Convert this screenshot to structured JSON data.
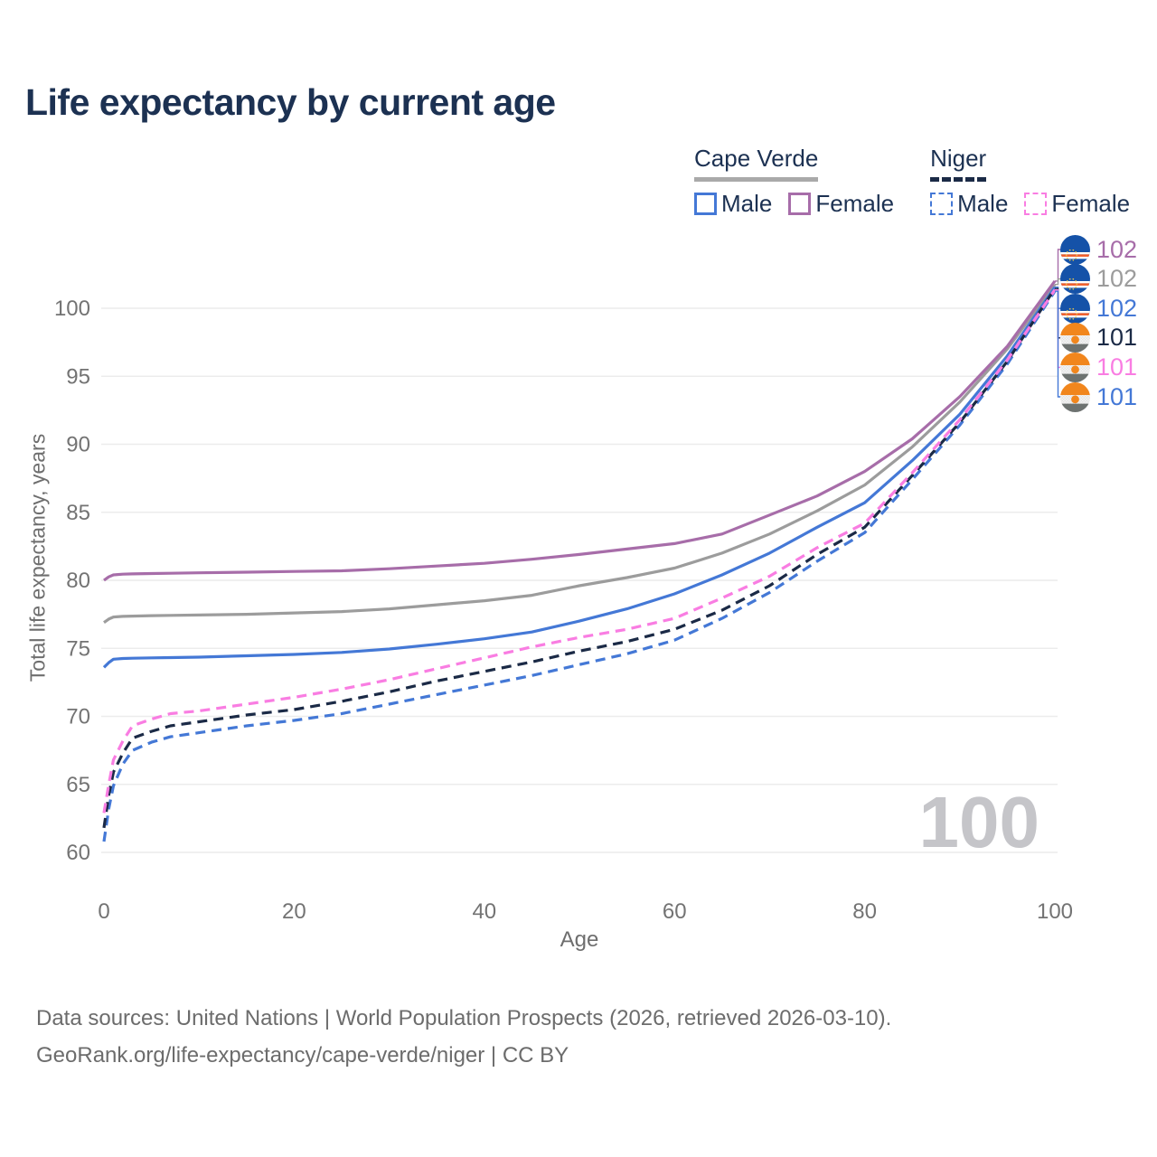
{
  "title": "Life expectancy by current age",
  "legend": {
    "groups": [
      {
        "label": "Cape Verde",
        "line_style": "solid",
        "underline_color": "#a9a9a9",
        "items": [
          {
            "label": "Male",
            "color": "#4478d6"
          },
          {
            "label": "Female",
            "color": "#a76da9"
          }
        ]
      },
      {
        "label": "Niger",
        "line_style": "dashed",
        "underline_color": "#1b2a46",
        "items": [
          {
            "label": "Male",
            "color": "#4478d6"
          },
          {
            "label": "Female",
            "color": "#f97de2"
          }
        ]
      }
    ]
  },
  "axes": {
    "x": {
      "title": "Age",
      "ticks": [
        0,
        20,
        40,
        60,
        80,
        100
      ]
    },
    "y": {
      "title": "Total life expectancy, years",
      "ticks": [
        60,
        65,
        70,
        75,
        80,
        85,
        90,
        95,
        100
      ]
    }
  },
  "watermark": "100",
  "footer": {
    "line1": "Data sources: United Nations | World Population Prospects (2026, retrieved 2026-03-10).",
    "line2": "GeoRank.org/life-expectancy/cape-verde/niger | CC BY"
  },
  "chart_data": {
    "type": "line",
    "title": "Life expectancy by current age",
    "xlabel": "Age",
    "ylabel": "Total life expectancy, years",
    "xlim": [
      0,
      100
    ],
    "ylim": [
      60,
      103
    ],
    "grid": "horizontal",
    "x": [
      0,
      0.5,
      1,
      2,
      3,
      5,
      7,
      10,
      15,
      20,
      25,
      30,
      35,
      40,
      45,
      50,
      55,
      60,
      65,
      70,
      75,
      80,
      85,
      90,
      95,
      100
    ],
    "series": [
      {
        "id": "cape_verde_combined",
        "name": "Cape Verde (combined)",
        "color": "#9c9c9c",
        "dash": null,
        "values": [
          76.9,
          77.15,
          77.3,
          77.35,
          77.37,
          77.4,
          77.42,
          77.45,
          77.5,
          77.6,
          77.7,
          77.9,
          78.2,
          78.5,
          78.9,
          79.6,
          80.2,
          80.9,
          82.0,
          83.4,
          85.1,
          87.0,
          89.8,
          93.1,
          97.0,
          101.75
        ]
      },
      {
        "id": "cape_verde_male",
        "name": "Cape Verde Male",
        "color": "#4478d6",
        "dash": null,
        "values": [
          73.6,
          73.95,
          74.2,
          74.25,
          74.27,
          74.3,
          74.32,
          74.35,
          74.45,
          74.55,
          74.7,
          74.95,
          75.3,
          75.7,
          76.2,
          77.0,
          77.9,
          79.0,
          80.4,
          82.0,
          83.9,
          85.7,
          88.8,
          92.2,
          96.5,
          101.55
        ]
      },
      {
        "id": "cape_verde_female",
        "name": "Cape Verde Female",
        "color": "#a76da9",
        "dash": null,
        "values": [
          80.0,
          80.25,
          80.4,
          80.45,
          80.47,
          80.5,
          80.52,
          80.55,
          80.6,
          80.65,
          80.7,
          80.85,
          81.05,
          81.25,
          81.55,
          81.9,
          82.3,
          82.7,
          83.4,
          84.8,
          86.2,
          88.0,
          90.4,
          93.5,
          97.2,
          102.0
        ]
      },
      {
        "id": "niger_male",
        "name": "Niger Male",
        "color": "#4478d6",
        "dash": "11 7",
        "values": [
          60.8,
          63.2,
          64.9,
          66.5,
          67.5,
          68.1,
          68.5,
          68.8,
          69.3,
          69.7,
          70.2,
          70.9,
          71.6,
          72.3,
          73.0,
          73.8,
          74.6,
          75.6,
          77.2,
          79.1,
          81.4,
          83.5,
          87.4,
          91.4,
          95.9,
          101.25
        ]
      },
      {
        "id": "niger_combined",
        "name": "Niger (combined)",
        "color": "#1b2a46",
        "dash": "11 7",
        "values": [
          61.8,
          64.2,
          65.9,
          67.3,
          68.4,
          68.9,
          69.3,
          69.6,
          70.1,
          70.5,
          71.1,
          71.8,
          72.6,
          73.3,
          74.0,
          74.8,
          75.5,
          76.4,
          77.8,
          79.6,
          81.9,
          83.9,
          87.7,
          91.6,
          96.1,
          101.45
        ]
      },
      {
        "id": "niger_female",
        "name": "Niger Female",
        "color": "#f97de2",
        "dash": "11 7",
        "values": [
          62.9,
          65.0,
          66.8,
          68.2,
          69.3,
          69.8,
          70.2,
          70.4,
          70.9,
          71.4,
          72.0,
          72.7,
          73.5,
          74.3,
          75.1,
          75.8,
          76.4,
          77.2,
          78.7,
          80.3,
          82.4,
          84.2,
          87.9,
          91.8,
          96.2,
          101.35
        ]
      }
    ],
    "end_labels": [
      {
        "value": "102",
        "series_id": "cape_verde_female",
        "flag": "cape-verde",
        "color": "#a76da9"
      },
      {
        "value": "102",
        "series_id": "cape_verde_combined",
        "flag": "cape-verde",
        "color": "#9c9c9c"
      },
      {
        "value": "102",
        "series_id": "cape_verde_male",
        "flag": "cape-verde",
        "color": "#4478d6"
      },
      {
        "value": "101",
        "series_id": "niger_combined",
        "flag": "niger",
        "color": "#1b2a46"
      },
      {
        "value": "101",
        "series_id": "niger_female",
        "flag": "niger",
        "color": "#f97de2"
      },
      {
        "value": "101",
        "series_id": "niger_male",
        "flag": "niger",
        "color": "#4478d6"
      }
    ]
  }
}
